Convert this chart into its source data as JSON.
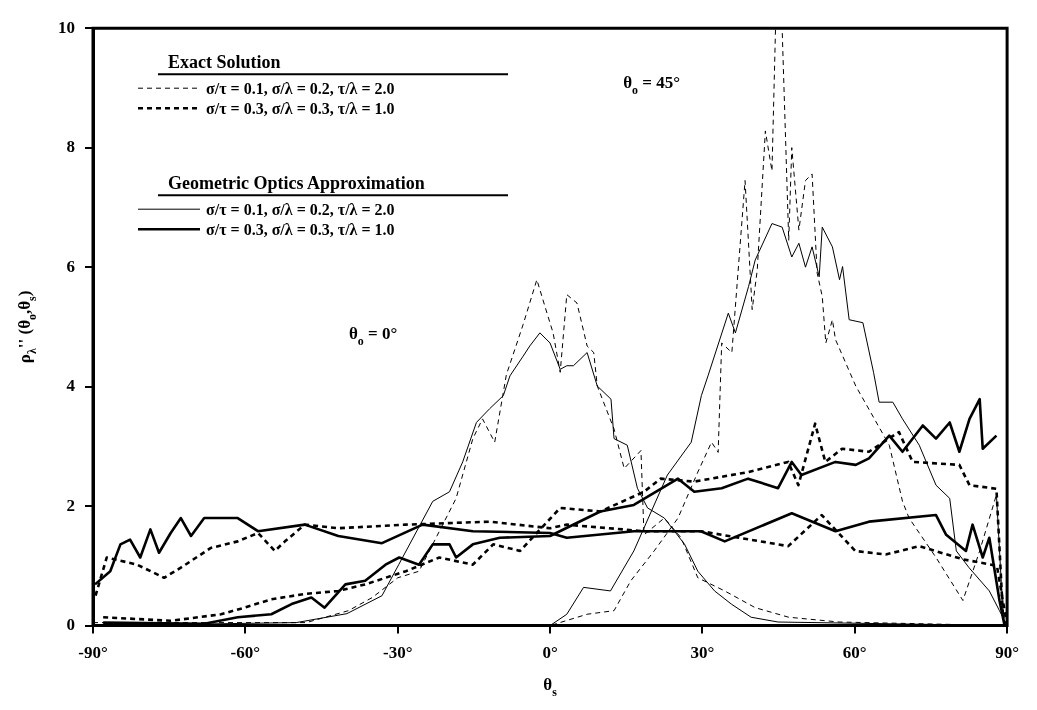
{
  "chart_data": {
    "type": "line",
    "xlabel": "θ$_{s}$",
    "ylabel": "ρ$_{λ}$'' (θ$_{o}$,θ$_{s}$)",
    "xlim": [
      -90,
      90
    ],
    "ylim": [
      0,
      10
    ],
    "xticks": [
      {
        "value": -90,
        "label": "-90°"
      },
      {
        "value": -60,
        "label": "-60°"
      },
      {
        "value": -30,
        "label": "-30°"
      },
      {
        "value": 0,
        "label": "0°"
      },
      {
        "value": 30,
        "label": "30°"
      },
      {
        "value": 60,
        "label": "60°"
      },
      {
        "value": 90,
        "label": "90°"
      }
    ],
    "yticks": [
      0,
      2,
      4,
      6,
      8,
      10
    ],
    "legend": "top left",
    "marker": "none",
    "annotations": [
      "Exact Solution",
      "Geometric Optics Approximation",
      "θ$_{o}$ = 0°",
      "θ$_{o}$ = 45°"
    ],
    "series": [
      {
        "name": "σ/τ = 0.1, σ/λ = 0.2, τ/λ = 2.0",
        "color": "#000000",
        "line_style": "dashed",
        "x": [
          -90,
          -48,
          -39.7,
          -35,
          -30,
          -25.8,
          -18.5,
          -15.2,
          -13.3,
          -10.9,
          -8.6,
          -5.3,
          -2.6,
          -0.6,
          0.6,
          2,
          3.3,
          5.3,
          7.3,
          8.6,
          9.3,
          12.6,
          14.6,
          17.9,
          18.5,
          22.5,
          25.8,
          29.1,
          34.4,
          40.4,
          47,
          56.9,
          90
        ],
        "values": [
          0.05,
          0.05,
          0.25,
          0.47,
          0.8,
          0.91,
          2.13,
          3.13,
          3.46,
          3.07,
          4.2,
          5.04,
          5.79,
          5.23,
          4.9,
          4.24,
          5.54,
          5.4,
          4.68,
          4.57,
          4.01,
          3.29,
          2.63,
          2.93,
          1.52,
          1.8,
          1.47,
          0.8,
          0.58,
          0.3,
          0.14,
          0.06,
          0
        ]
      },
      {
        "name": "σ/τ = 0.3, σ/λ = 0.3, τ/λ = 1.0",
        "color": "#000000",
        "line_style": "dashed",
        "x": [
          -89.5,
          -87.3,
          -81.3,
          -76,
          -72.7,
          -66.8,
          -61.5,
          -57.5,
          -54.2,
          -52.2,
          -48.3,
          -41.7,
          -28.4,
          -11.9,
          0,
          3.3,
          18.5,
          29.7,
          46.9,
          53.5,
          60.1,
          66.1,
          72.7,
          81.3,
          88,
          90
        ],
        "values": [
          0.5,
          1.14,
          1.02,
          0.8,
          0.97,
          1.3,
          1.41,
          1.55,
          1.25,
          1.41,
          1.69,
          1.63,
          1.69,
          1.74,
          1.63,
          1.69,
          1.58,
          1.58,
          1.33,
          1.85,
          1.25,
          1.19,
          1.33,
          1.11,
          1.0,
          0
        ]
      },
      {
        "name": "σ/τ = 0.1, σ/λ = 0.2, τ/λ = 2.0",
        "color": "#000000",
        "line_style": "solid",
        "x": [
          -90,
          -50,
          -40,
          -33.1,
          -29.8,
          -23.1,
          -19.8,
          -17.2,
          -14.5,
          -11.9,
          -9.2,
          -7.9,
          -5.3,
          -4,
          -2,
          0,
          2,
          3.3,
          4.6,
          7.3,
          9.3,
          12,
          12.6,
          15.2,
          17.2,
          19.2,
          22.5,
          26.5,
          29.1,
          32.4,
          35.7,
          39.6,
          44.9,
          90
        ],
        "values": [
          0,
          0.05,
          0.2,
          0.5,
          1.02,
          2.08,
          2.24,
          2.74,
          3.4,
          3.63,
          3.85,
          4.18,
          4.51,
          4.68,
          4.9,
          4.73,
          4.29,
          4.35,
          4.35,
          4.57,
          4.01,
          3.79,
          3.13,
          3.02,
          2.3,
          1.97,
          1.8,
          1.36,
          0.91,
          0.58,
          0.36,
          0.14,
          0.06,
          0
        ]
      },
      {
        "name": "σ/τ = 0.3, σ/λ = 0.3, τ/λ = 1.0",
        "color": "#000000",
        "line_style": "solid",
        "x": [
          -89.6,
          -86.6,
          -84.6,
          -82.7,
          -80.7,
          -78.7,
          -77,
          -74.7,
          -72.7,
          -70.7,
          -68.1,
          -64.8,
          -61.5,
          -57.5,
          -48.3,
          -41.7,
          -33.1,
          -25.1,
          -15.2,
          0,
          3.3,
          16.5,
          29.7,
          34.4,
          47.6,
          56.2,
          62.8,
          76,
          78,
          81.9,
          83.2,
          85.2,
          86.5,
          88.5,
          89.5
        ],
        "values": [
          0.69,
          0.91,
          1.36,
          1.44,
          1.14,
          1.61,
          1.22,
          1.55,
          1.8,
          1.5,
          1.8,
          1.8,
          1.8,
          1.58,
          1.69,
          1.5,
          1.38,
          1.69,
          1.58,
          1.55,
          1.47,
          1.58,
          1.58,
          1.41,
          1.88,
          1.58,
          1.74,
          1.85,
          1.52,
          1.25,
          1.69,
          1.14,
          1.47,
          0.42,
          0
        ]
      },
      {
        "color": "#000000",
        "line_style": "dashed",
        "x": [
          -90,
          0,
          7.3,
          12.6,
          15.9,
          20.5,
          25.2,
          29.1,
          31.8,
          33.1,
          33.8,
          35.8,
          38.4,
          39.8,
          40.8,
          42.4,
          43.7,
          44.4,
          45.7,
          47,
          47.6,
          49,
          50.3,
          51.6,
          52.6,
          53.6,
          54.3,
          55.6,
          56.2,
          60.2,
          66.8,
          69.4,
          70.7,
          76,
          81.3,
          84.6,
          87.9,
          89.2,
          90
        ],
        "values": [
          0,
          0,
          0.19,
          0.25,
          0.75,
          1.25,
          1.8,
          2.57,
          3.07,
          2.9,
          4.73,
          4.57,
          7.45,
          5.29,
          5.95,
          8.28,
          7.61,
          10,
          10,
          6.45,
          8.0,
          6.62,
          7.45,
          7.56,
          5.9,
          5.51,
          4.73,
          5.12,
          4.79,
          4.01,
          3.02,
          2.08,
          1.8,
          1.14,
          0.42,
          1.25,
          2.19,
          0.19,
          0
        ]
      },
      {
        "color": "#000000",
        "line_style": "dashed",
        "x": [
          -88,
          -74.7,
          -64.8,
          -60.2,
          -54.9,
          -48.3,
          -41.7,
          -36.4,
          -28.4,
          -21.8,
          -15.2,
          -11.2,
          -5.9,
          2,
          9.9,
          18.5,
          21.8,
          28.4,
          39,
          46.9,
          48.9,
          52.2,
          54.2,
          57.5,
          62.8,
          68.7,
          71.4,
          80.6,
          82.6,
          87.9,
          89.2
        ],
        "values": [
          0.14,
          0.08,
          0.19,
          0.3,
          0.44,
          0.53,
          0.58,
          0.69,
          0.91,
          1.14,
          1.02,
          1.36,
          1.25,
          1.97,
          1.91,
          2.24,
          2.46,
          2.41,
          2.57,
          2.74,
          2.35,
          3.38,
          2.74,
          2.96,
          2.91,
          3.24,
          2.74,
          2.69,
          2.35,
          2.29,
          0.14
        ]
      },
      {
        "color": "#000000",
        "line_style": "solid",
        "x": [
          -90,
          0,
          3.3,
          6.6,
          11.9,
          16.5,
          23.1,
          27.8,
          29.8,
          31.1,
          35.1,
          36.5,
          39.1,
          40.4,
          43.7,
          45.7,
          47.6,
          49,
          50.3,
          51.6,
          53,
          53.6,
          55.6,
          57,
          57.6,
          58.9,
          61.6,
          63.7,
          64.8,
          67.5,
          69.4,
          72.7,
          76,
          78.7,
          80,
          82.5,
          86.5,
          88.5,
          90
        ],
        "values": [
          0,
          0,
          0.19,
          0.64,
          0.58,
          1.25,
          2.52,
          3.07,
          3.85,
          4.18,
          5.23,
          4.9,
          5.68,
          6.12,
          6.73,
          6.67,
          6.17,
          6.4,
          6.0,
          6.34,
          5.84,
          6.67,
          6.34,
          5.79,
          6.01,
          5.12,
          5.07,
          4.24,
          3.74,
          3.74,
          3.46,
          3.02,
          2.35,
          2.13,
          1.25,
          0.97,
          0.58,
          0.25,
          0
        ]
      },
      {
        "color": "#000000",
        "line_style": "solid",
        "x": [
          -88,
          -68.1,
          -61.5,
          -54.9,
          -50.9,
          -47,
          -44.4,
          -40.3,
          -36.4,
          -32.4,
          -29.7,
          -25.8,
          -23.1,
          -19.8,
          -18.5,
          -15.2,
          -9.9,
          0,
          9.9,
          16.5,
          25.2,
          28.4,
          33.8,
          39,
          44.9,
          47.6,
          49.5,
          56.2,
          60.2,
          62.8,
          66.8,
          69.4,
          73.4,
          76,
          78.7,
          80.6,
          82.6,
          84.6,
          85.2,
          87.9
        ],
        "values": [
          0.05,
          0.03,
          0.14,
          0.19,
          0.36,
          0.47,
          0.3,
          0.69,
          0.75,
          1.02,
          1.14,
          1.02,
          1.36,
          1.36,
          1.14,
          1.36,
          1.47,
          1.5,
          1.91,
          2.02,
          2.46,
          2.24,
          2.3,
          2.46,
          2.3,
          2.74,
          2.52,
          2.74,
          2.69,
          2.8,
          3.18,
          2.91,
          3.35,
          3.13,
          3.4,
          2.91,
          3.46,
          3.79,
          2.96,
          3.18
        ]
      }
    ]
  }
}
